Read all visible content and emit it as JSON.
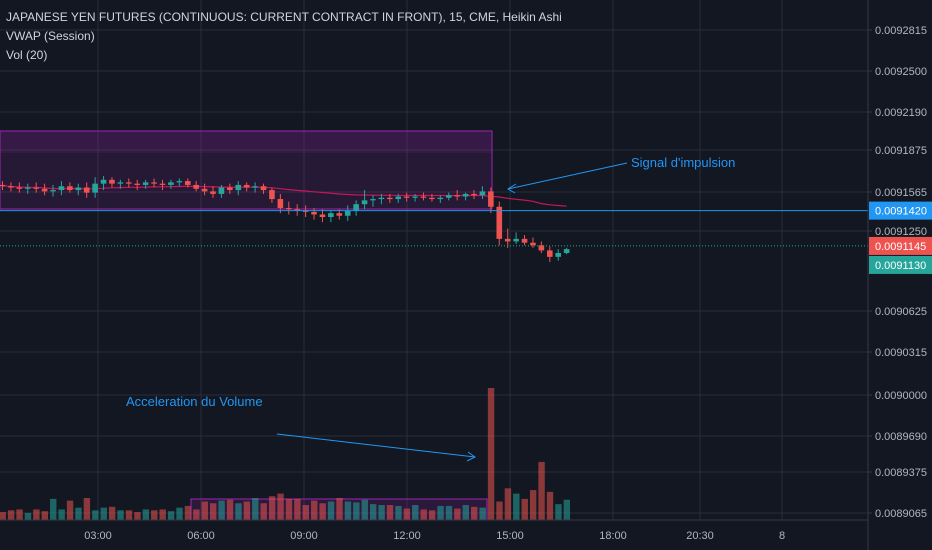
{
  "header": {
    "title": "JAPANESE YEN FUTURES (CONTINUOUS: CURRENT CONTRACT IN FRONT), 15, CME, Heikin Ashi",
    "indicator_vwap": "VWAP (Session)",
    "indicator_vol": "Vol (20)"
  },
  "colors": {
    "background": "#131722",
    "up": "#26a69a",
    "down": "#ef5350",
    "vwap": "#c2185b",
    "box": "#9c27b0",
    "hline": "#2196f3",
    "grid": "#2a2e39"
  },
  "chart_data": {
    "type": "candlestick",
    "price_axis": {
      "ticks": [
        "0.0092815",
        "0.0092500",
        "0.0092190",
        "0.0091875",
        "0.0091565",
        "0.0091250",
        "0.0090625",
        "0.0090315",
        "0.0090000",
        "0.0089690",
        "0.0089375",
        "0.0089065"
      ]
    },
    "time_axis": {
      "ticks": [
        "03:00",
        "06:00",
        "09:00",
        "12:00",
        "15:00",
        "18:00",
        "20:30",
        "8"
      ]
    },
    "price_tags": [
      {
        "value": "0.0091420",
        "kind": "level"
      },
      {
        "value": "0.0091145",
        "kind": "last"
      },
      {
        "value": "0.0091130",
        "kind": "close"
      }
    ],
    "annotations": [
      {
        "text": "Signal d'impulsion"
      },
      {
        "text": "Acceleration du Volume"
      }
    ],
    "candles": [
      {
        "o": 0.009162,
        "h": 0.009165,
        "l": 0.009158,
        "c": 0.009161
      },
      {
        "o": 0.009161,
        "h": 0.009164,
        "l": 0.009157,
        "c": 0.00916
      },
      {
        "o": 0.00916,
        "h": 0.009164,
        "l": 0.009156,
        "c": 0.009159
      },
      {
        "o": 0.009159,
        "h": 0.009163,
        "l": 0.009155,
        "c": 0.00916
      },
      {
        "o": 0.00916,
        "h": 0.009164,
        "l": 0.009156,
        "c": 0.009159
      },
      {
        "o": 0.009159,
        "h": 0.009163,
        "l": 0.009154,
        "c": 0.009157
      },
      {
        "o": 0.009157,
        "h": 0.009162,
        "l": 0.009153,
        "c": 0.009158
      },
      {
        "o": 0.009158,
        "h": 0.009165,
        "l": 0.009154,
        "c": 0.009161
      },
      {
        "o": 0.009161,
        "h": 0.009164,
        "l": 0.009156,
        "c": 0.009158
      },
      {
        "o": 0.009158,
        "h": 0.009163,
        "l": 0.009154,
        "c": 0.00916
      },
      {
        "o": 0.00916,
        "h": 0.009164,
        "l": 0.009152,
        "c": 0.009156
      },
      {
        "o": 0.009156,
        "h": 0.009168,
        "l": 0.009152,
        "c": 0.009163
      },
      {
        "o": 0.009163,
        "h": 0.009169,
        "l": 0.009158,
        "c": 0.009166
      },
      {
        "o": 0.009166,
        "h": 0.009168,
        "l": 0.00916,
        "c": 0.009163
      },
      {
        "o": 0.009163,
        "h": 0.009166,
        "l": 0.009159,
        "c": 0.009164
      },
      {
        "o": 0.009164,
        "h": 0.009167,
        "l": 0.00916,
        "c": 0.009163
      },
      {
        "o": 0.009163,
        "h": 0.009166,
        "l": 0.009158,
        "c": 0.009162
      },
      {
        "o": 0.009162,
        "h": 0.009166,
        "l": 0.009159,
        "c": 0.009164
      },
      {
        "o": 0.009164,
        "h": 0.009167,
        "l": 0.00916,
        "c": 0.009163
      },
      {
        "o": 0.009163,
        "h": 0.009166,
        "l": 0.009158,
        "c": 0.009162
      },
      {
        "o": 0.009162,
        "h": 0.009166,
        "l": 0.009159,
        "c": 0.009164
      },
      {
        "o": 0.009164,
        "h": 0.009167,
        "l": 0.009161,
        "c": 0.009165
      },
      {
        "o": 0.009165,
        "h": 0.009167,
        "l": 0.00916,
        "c": 0.009162
      },
      {
        "o": 0.009162,
        "h": 0.009165,
        "l": 0.009157,
        "c": 0.009159
      },
      {
        "o": 0.009159,
        "h": 0.009163,
        "l": 0.009154,
        "c": 0.009157
      },
      {
        "o": 0.009157,
        "h": 0.009161,
        "l": 0.009152,
        "c": 0.009155
      },
      {
        "o": 0.009155,
        "h": 0.009162,
        "l": 0.009152,
        "c": 0.00916
      },
      {
        "o": 0.00916,
        "h": 0.009163,
        "l": 0.009155,
        "c": 0.009158
      },
      {
        "o": 0.009158,
        "h": 0.009165,
        "l": 0.009154,
        "c": 0.009162
      },
      {
        "o": 0.009162,
        "h": 0.009164,
        "l": 0.009157,
        "c": 0.00916
      },
      {
        "o": 0.00916,
        "h": 0.009164,
        "l": 0.009156,
        "c": 0.009161
      },
      {
        "o": 0.009161,
        "h": 0.009163,
        "l": 0.009155,
        "c": 0.009158
      },
      {
        "o": 0.009158,
        "h": 0.00916,
        "l": 0.009148,
        "c": 0.009151
      },
      {
        "o": 0.009151,
        "h": 0.009155,
        "l": 0.00914,
        "c": 0.009144
      },
      {
        "o": 0.009144,
        "h": 0.009149,
        "l": 0.009139,
        "c": 0.009143
      },
      {
        "o": 0.009143,
        "h": 0.009147,
        "l": 0.009138,
        "c": 0.009142
      },
      {
        "o": 0.009142,
        "h": 0.009146,
        "l": 0.009137,
        "c": 0.009141
      },
      {
        "o": 0.009141,
        "h": 0.009144,
        "l": 0.009135,
        "c": 0.009139
      },
      {
        "o": 0.009139,
        "h": 0.009143,
        "l": 0.009133,
        "c": 0.009137
      },
      {
        "o": 0.009137,
        "h": 0.009142,
        "l": 0.009133,
        "c": 0.00914
      },
      {
        "o": 0.00914,
        "h": 0.009143,
        "l": 0.009135,
        "c": 0.009138
      },
      {
        "o": 0.009138,
        "h": 0.009146,
        "l": 0.009134,
        "c": 0.009142
      },
      {
        "o": 0.009142,
        "h": 0.00915,
        "l": 0.009138,
        "c": 0.009147
      },
      {
        "o": 0.009147,
        "h": 0.009158,
        "l": 0.009143,
        "c": 0.00915
      },
      {
        "o": 0.00915,
        "h": 0.009154,
        "l": 0.009145,
        "c": 0.009151
      },
      {
        "o": 0.009151,
        "h": 0.009155,
        "l": 0.009147,
        "c": 0.009152
      },
      {
        "o": 0.009152,
        "h": 0.009155,
        "l": 0.009148,
        "c": 0.009151
      },
      {
        "o": 0.009151,
        "h": 0.009155,
        "l": 0.009148,
        "c": 0.009153
      },
      {
        "o": 0.009153,
        "h": 0.009156,
        "l": 0.009149,
        "c": 0.009152
      },
      {
        "o": 0.009152,
        "h": 0.009155,
        "l": 0.009149,
        "c": 0.009153
      },
      {
        "o": 0.009153,
        "h": 0.009156,
        "l": 0.00915,
        "c": 0.009152
      },
      {
        "o": 0.009152,
        "h": 0.009155,
        "l": 0.009149,
        "c": 0.009151
      },
      {
        "o": 0.009151,
        "h": 0.009154,
        "l": 0.009148,
        "c": 0.009152
      },
      {
        "o": 0.009152,
        "h": 0.009156,
        "l": 0.00915,
        "c": 0.009154
      },
      {
        "o": 0.009154,
        "h": 0.009158,
        "l": 0.00915,
        "c": 0.009153
      },
      {
        "o": 0.009153,
        "h": 0.009156,
        "l": 0.00915,
        "c": 0.009155
      },
      {
        "o": 0.009155,
        "h": 0.009158,
        "l": 0.009151,
        "c": 0.009154
      },
      {
        "o": 0.009154,
        "h": 0.009161,
        "l": 0.009151,
        "c": 0.009157
      },
      {
        "o": 0.009157,
        "h": 0.00916,
        "l": 0.00914,
        "c": 0.009145
      },
      {
        "o": 0.009145,
        "h": 0.009149,
        "l": 0.009115,
        "c": 0.00912
      },
      {
        "o": 0.00912,
        "h": 0.009128,
        "l": 0.009113,
        "c": 0.009118
      },
      {
        "o": 0.009118,
        "h": 0.009125,
        "l": 0.009116,
        "c": 0.00912
      },
      {
        "o": 0.00912,
        "h": 0.009123,
        "l": 0.009115,
        "c": 0.009117
      },
      {
        "o": 0.009117,
        "h": 0.009121,
        "l": 0.009113,
        "c": 0.009115
      },
      {
        "o": 0.009115,
        "h": 0.009118,
        "l": 0.009109,
        "c": 0.009111
      },
      {
        "o": 0.009111,
        "h": 0.009114,
        "l": 0.009102,
        "c": 0.009106
      },
      {
        "o": 0.009106,
        "h": 0.009112,
        "l": 0.009103,
        "c": 0.009109
      },
      {
        "o": 0.009109,
        "h": 0.009113,
        "l": 0.009108,
        "c": 0.009112
      }
    ],
    "volume": [
      9,
      11,
      12,
      8,
      12,
      10,
      24,
      12,
      22,
      14,
      25,
      11,
      14,
      15,
      11,
      11,
      9,
      12,
      11,
      12,
      10,
      14,
      16,
      12,
      21,
      19,
      22,
      23,
      19,
      21,
      25,
      19,
      27,
      30,
      24,
      24,
      17,
      22,
      19,
      21,
      25,
      21,
      20,
      23,
      18,
      17,
      17,
      16,
      13,
      17,
      12,
      11,
      16,
      16,
      13,
      17,
      15,
      14,
      150,
      21,
      36,
      30,
      24,
      34,
      66,
      32,
      18,
      23
    ]
  }
}
